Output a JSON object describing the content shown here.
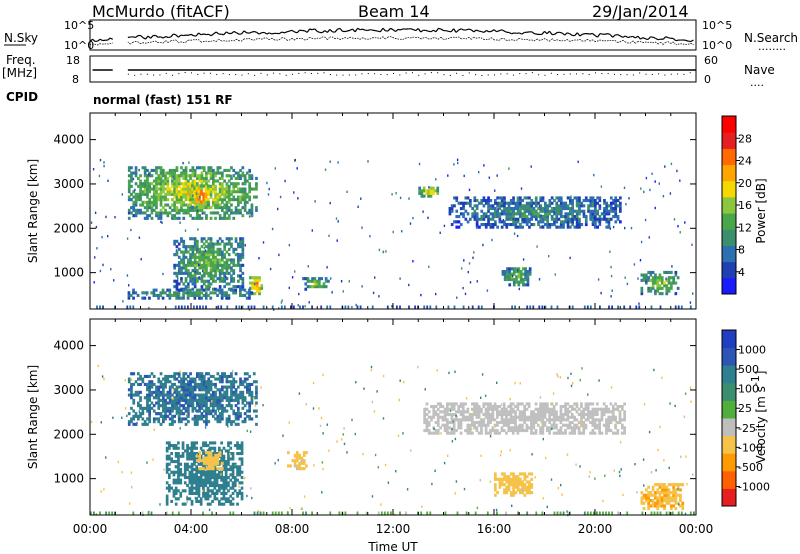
{
  "header": {
    "station": "McMurdo (fitACF)",
    "beam": "Beam 14",
    "date": "29/Jan/2014"
  },
  "noise_panel": {
    "left_label": "N.Sky",
    "right_label": "N.Search",
    "right_label_dots": "........",
    "ticks_left": [
      "10^5",
      "10^0"
    ],
    "ticks_right": [
      "10^5",
      "10^0"
    ]
  },
  "freq_panel": {
    "left_label_line1": "Freq.",
    "left_label_line2": "[MHz]",
    "right_label": "Nave",
    "right_label_dots": "....",
    "ticks_left": [
      "18",
      "8"
    ],
    "ticks_right": [
      "60",
      "0"
    ]
  },
  "cpid": {
    "label": "CPID",
    "value": "normal (fast) 151 RF"
  },
  "colors": {
    "power_scale": [
      "#1a1aff",
      "#1f3fb5",
      "#2e6fb0",
      "#3c8f6e",
      "#4aa64a",
      "#8cc63f",
      "#f5d800",
      "#ffa500",
      "#ff6a00",
      "#e62020",
      "#ff0000"
    ],
    "velocity_scale": [
      "#1f3fc0",
      "#2d55b5",
      "#2f7f8f",
      "#3c8f6e",
      "#4fae3c",
      "#bebebe",
      "#f5c24a",
      "#ff9a00",
      "#ff6000",
      "#e62020"
    ],
    "ground_scatter": "#c0c0c0"
  },
  "chart_data": [
    {
      "type": "heatmap",
      "title": "Power",
      "xlabel": "",
      "ylabel": "Slant Range [km]",
      "x_range": [
        "00:00",
        "00:00"
      ],
      "y_range_km": [
        180,
        4600
      ],
      "y_ticks": [
        1000,
        2000,
        3000,
        4000
      ],
      "colorbar": {
        "label": "Power [dB]",
        "ticks": [
          4,
          8,
          12,
          16,
          20,
          24,
          28
        ]
      },
      "regions": [
        {
          "t_start_h": 1.5,
          "t_end_h": 6.6,
          "r_start_km": 2200,
          "r_end_km": 3400,
          "level_db": 18
        },
        {
          "t_start_h": 4.0,
          "t_end_h": 4.7,
          "r_start_km": 2450,
          "r_end_km": 2950,
          "level_db": 26
        },
        {
          "t_start_h": 3.3,
          "t_end_h": 6.0,
          "r_start_km": 600,
          "r_end_km": 1800,
          "level_db": 14
        },
        {
          "t_start_h": 6.3,
          "t_end_h": 6.8,
          "r_start_km": 500,
          "r_end_km": 900,
          "level_db": 24
        },
        {
          "t_start_h": 1.4,
          "t_end_h": 6.4,
          "r_start_km": 400,
          "r_end_km": 600,
          "level_db": 12
        },
        {
          "t_start_h": 8.4,
          "t_end_h": 9.4,
          "r_start_km": 600,
          "r_end_km": 850,
          "level_db": 16
        },
        {
          "t_start_h": 13.0,
          "t_end_h": 13.8,
          "r_start_km": 2700,
          "r_end_km": 2900,
          "level_db": 20
        },
        {
          "t_start_h": 14.2,
          "t_end_h": 21.0,
          "r_start_km": 2000,
          "r_end_km": 2700,
          "level_db": 10
        },
        {
          "t_start_h": 16.3,
          "t_end_h": 17.4,
          "r_start_km": 700,
          "r_end_km": 1100,
          "level_db": 14
        },
        {
          "t_start_h": 21.8,
          "t_end_h": 23.3,
          "r_start_km": 500,
          "r_end_km": 1000,
          "level_db": 16
        }
      ]
    },
    {
      "type": "heatmap",
      "title": "Velocity",
      "xlabel": "Time UT",
      "ylabel": "Slant Range [km]",
      "x_ticks": [
        "00:00",
        "04:00",
        "08:00",
        "12:00",
        "16:00",
        "20:00",
        "00:00"
      ],
      "y_range_km": [
        180,
        4600
      ],
      "y_ticks": [
        1000,
        2000,
        3000,
        4000
      ],
      "colorbar": {
        "label": "Velocity [m s-1]",
        "ticks": [
          1000,
          500,
          100,
          25,
          -25,
          -100,
          -500,
          -1000
        ]
      },
      "regions": [
        {
          "t_start_h": 1.5,
          "t_end_h": 6.6,
          "r_start_km": 2200,
          "r_end_km": 3400,
          "velocity_ms": 400
        },
        {
          "t_start_h": 3.0,
          "t_end_h": 6.0,
          "r_start_km": 400,
          "r_end_km": 1800,
          "velocity_ms": 300
        },
        {
          "t_start_h": 7.8,
          "t_end_h": 8.6,
          "r_start_km": 1200,
          "r_end_km": 1600,
          "velocity_ms": -200
        },
        {
          "t_start_h": 4.2,
          "t_end_h": 5.2,
          "r_start_km": 1200,
          "r_end_km": 1600,
          "velocity_ms": -300
        },
        {
          "t_start_h": 13.2,
          "t_end_h": 21.2,
          "r_start_km": 2000,
          "r_end_km": 2700,
          "velocity_ms": 0
        },
        {
          "t_start_h": 16.0,
          "t_end_h": 17.5,
          "r_start_km": 600,
          "r_end_km": 1100,
          "velocity_ms": -300
        },
        {
          "t_start_h": 21.8,
          "t_end_h": 23.5,
          "r_start_km": 300,
          "r_end_km": 900,
          "velocity_ms": -400
        }
      ]
    }
  ]
}
